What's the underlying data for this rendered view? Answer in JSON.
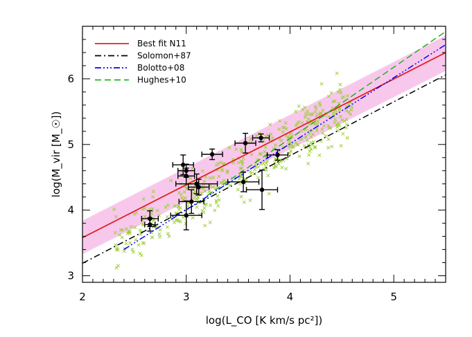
{
  "chart_data": {
    "type": "scatter",
    "title": "",
    "xlabel": "log(L_CO [K km/s pc²])",
    "ylabel": "log(M_vir [M_☉])",
    "xlim": [
      2,
      5.5
    ],
    "ylim": [
      2.9,
      6.8
    ],
    "x_ticks": [
      "2",
      "3",
      "4",
      "5"
    ],
    "y_ticks": [
      "3",
      "4",
      "5",
      "6"
    ],
    "legend_position": "top-left",
    "band": {
      "color": "#f8c8ec",
      "x": [
        2,
        5.5
      ],
      "lower": [
        3.33,
        6.12
      ],
      "upper": [
        3.84,
        6.66
      ]
    },
    "series": [
      {
        "name": "Best fit N11",
        "style": "solid",
        "color": "#e02020",
        "x": [
          2,
          5.5
        ],
        "y": [
          3.58,
          6.4
        ]
      },
      {
        "name": "Solomon+87",
        "style": "dashdot",
        "color": "#000000",
        "x": [
          2,
          5.5
        ],
        "y": [
          3.19,
          6.06
        ]
      },
      {
        "name": "Bolotto+08",
        "style": "dashdotdotdot",
        "color": "#0000ff",
        "x": [
          2.4,
          5.5
        ],
        "y": [
          3.4,
          6.52
        ]
      },
      {
        "name": "Hughes+10",
        "style": "dashed",
        "color": "#20b020",
        "x": [
          3.2,
          5.5
        ],
        "y": [
          4.22,
          6.72
        ]
      }
    ],
    "points": {
      "color": "#000000",
      "values": [
        {
          "x": 2.65,
          "y": 3.87,
          "xerr": 0.08,
          "yerr": 0.12
        },
        {
          "x": 2.65,
          "y": 3.78,
          "xerr": 0.05,
          "yerr": 0.1
        },
        {
          "x": 2.97,
          "y": 4.69,
          "xerr": 0.1,
          "yerr": 0.15
        },
        {
          "x": 3.0,
          "y": 4.6,
          "xerr": 0.08,
          "yerr": 0.1
        },
        {
          "x": 3.0,
          "y": 4.52,
          "xerr": 0.08,
          "yerr": 0.12
        },
        {
          "x": 3.25,
          "y": 4.85,
          "xerr": 0.1,
          "yerr": 0.08
        },
        {
          "x": 3.57,
          "y": 5.02,
          "xerr": 0.1,
          "yerr": 0.15
        },
        {
          "x": 3.72,
          "y": 5.1,
          "xerr": 0.08,
          "yerr": 0.06
        },
        {
          "x": 3.88,
          "y": 4.84,
          "xerr": 0.1,
          "yerr": 0.08
        },
        {
          "x": 3.1,
          "y": 4.4,
          "xerr": 0.2,
          "yerr": 0.15
        },
        {
          "x": 3.12,
          "y": 4.35,
          "xerr": 0.1,
          "yerr": 0.12
        },
        {
          "x": 3.05,
          "y": 4.13,
          "xerr": 0.12,
          "yerr": 0.18
        },
        {
          "x": 3.0,
          "y": 3.92,
          "xerr": 0.15,
          "yerr": 0.22
        },
        {
          "x": 3.55,
          "y": 4.43,
          "xerr": 0.15,
          "yerr": 0.15
        },
        {
          "x": 3.73,
          "y": 4.31,
          "xerr": 0.15,
          "yerr": 0.3
        }
      ]
    },
    "crosses": {
      "color": "#9acd32",
      "count": 420,
      "x_range": [
        2.3,
        4.6
      ],
      "relation_slope": 0.95,
      "relation_intercept": 1.25,
      "scatter": 0.35
    }
  }
}
